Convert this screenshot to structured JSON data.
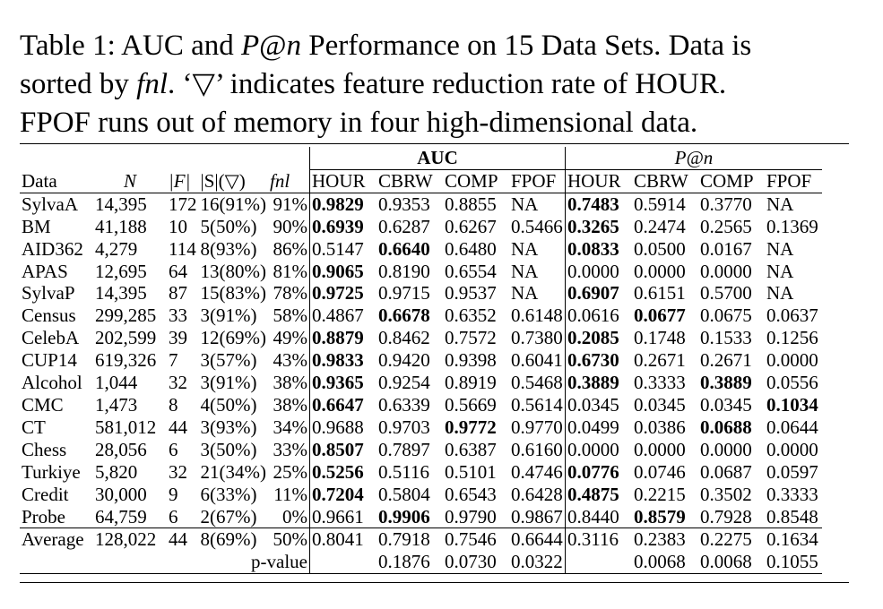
{
  "caption": {
    "line1": "Table 1: AUC and P@n Performance on 15 Data Sets. Data is",
    "line2": "sorted by fnl. ‘▽’ indicates feature reduction rate of HOUR.",
    "line3": "FPOF runs out of memory in four high-dimensional data."
  },
  "groups": {
    "auc": "AUC",
    "pn": "P@n"
  },
  "headers": [
    "Data",
    "N",
    "|F|",
    "|S|(▽)",
    "fnl",
    "HOUR",
    "CBRW",
    "COMP",
    "FPOF",
    "HOUR",
    "CBRW",
    "COMP",
    "FPOF"
  ],
  "rows": [
    {
      "cells": [
        "SylvaA",
        "14,395",
        "172",
        "16(91%)",
        "91%",
        "0.9829",
        "0.9353",
        "0.8855",
        "NA",
        "0.7483",
        "0.5914",
        "0.3770",
        "NA"
      ],
      "bold": [
        5,
        9
      ]
    },
    {
      "cells": [
        "BM",
        "41,188",
        "10",
        "5(50%)",
        "90%",
        "0.6939",
        "0.6287",
        "0.6267",
        "0.5466",
        "0.3265",
        "0.2474",
        "0.2565",
        "0.1369"
      ],
      "bold": [
        5,
        9
      ]
    },
    {
      "cells": [
        "AID362",
        "4,279",
        "114",
        "8(93%)",
        "86%",
        "0.5147",
        "0.6640",
        "0.6480",
        "NA",
        "0.0833",
        "0.0500",
        "0.0167",
        "NA"
      ],
      "bold": [
        6,
        9
      ]
    },
    {
      "cells": [
        "APAS",
        "12,695",
        "64",
        "13(80%)",
        "81%",
        "0.9065",
        "0.8190",
        "0.6554",
        "NA",
        "0.0000",
        "0.0000",
        "0.0000",
        "NA"
      ],
      "bold": [
        5
      ]
    },
    {
      "cells": [
        "SylvaP",
        "14,395",
        "87",
        "15(83%)",
        "78%",
        "0.9725",
        "0.9715",
        "0.9537",
        "NA",
        "0.6907",
        "0.6151",
        "0.5700",
        "NA"
      ],
      "bold": [
        5,
        9
      ]
    },
    {
      "cells": [
        "Census",
        "299,285",
        "33",
        "3(91%)",
        "58%",
        "0.4867",
        "0.6678",
        "0.6352",
        "0.6148",
        "0.0616",
        "0.0677",
        "0.0675",
        "0.0637"
      ],
      "bold": [
        6,
        10
      ]
    },
    {
      "cells": [
        "CelebA",
        "202,599",
        "39",
        "12(69%)",
        "49%",
        "0.8879",
        "0.8462",
        "0.7572",
        "0.7380",
        "0.2085",
        "0.1748",
        "0.1533",
        "0.1256"
      ],
      "bold": [
        5,
        9
      ]
    },
    {
      "cells": [
        "CUP14",
        "619,326",
        "7",
        "3(57%)",
        "43%",
        "0.9833",
        "0.9420",
        "0.9398",
        "0.6041",
        "0.6730",
        "0.2671",
        "0.2671",
        "0.0000"
      ],
      "bold": [
        5,
        9
      ]
    },
    {
      "cells": [
        "Alcohol",
        "1,044",
        "32",
        "3(91%)",
        "38%",
        "0.9365",
        "0.9254",
        "0.8919",
        "0.5468",
        "0.3889",
        "0.3333",
        "0.3889",
        "0.0556"
      ],
      "bold": [
        5,
        9,
        11
      ]
    },
    {
      "cells": [
        "CMC",
        "1,473",
        "8",
        "4(50%)",
        "38%",
        "0.6647",
        "0.6339",
        "0.5669",
        "0.5614",
        "0.0345",
        "0.0345",
        "0.0345",
        "0.1034"
      ],
      "bold": [
        5,
        12
      ]
    },
    {
      "cells": [
        "CT",
        "581,012",
        "44",
        "3(93%)",
        "34%",
        "0.9688",
        "0.9703",
        "0.9772",
        "0.9770",
        "0.0499",
        "0.0386",
        "0.0688",
        "0.0644"
      ],
      "bold": [
        7,
        11
      ]
    },
    {
      "cells": [
        "Chess",
        "28,056",
        "6",
        "3(50%)",
        "33%",
        "0.8507",
        "0.7897",
        "0.6387",
        "0.6160",
        "0.0000",
        "0.0000",
        "0.0000",
        "0.0000"
      ],
      "bold": [
        5
      ]
    },
    {
      "cells": [
        "Turkiye",
        "5,820",
        "32",
        "21(34%)",
        "25%",
        "0.5256",
        "0.5116",
        "0.5101",
        "0.4746",
        "0.0776",
        "0.0746",
        "0.0687",
        "0.0597"
      ],
      "bold": [
        5,
        9
      ]
    },
    {
      "cells": [
        "Credit",
        "30,000",
        "9",
        "6(33%)",
        "11%",
        "0.7204",
        "0.5804",
        "0.6543",
        "0.6428",
        "0.4875",
        "0.2215",
        "0.3502",
        "0.3333"
      ],
      "bold": [
        5,
        9
      ]
    },
    {
      "cells": [
        "Probe",
        "64,759",
        "6",
        "2(67%)",
        "0%",
        "0.9661",
        "0.9906",
        "0.9790",
        "0.9867",
        "0.8440",
        "0.8579",
        "0.7928",
        "0.8548"
      ],
      "bold": [
        6,
        10
      ]
    }
  ],
  "average": [
    "Average",
    "128,022",
    "44",
    "8(69%)",
    "50%",
    "0.8041",
    "0.7918",
    "0.7546",
    "0.6644",
    "0.3116",
    "0.2383",
    "0.2275",
    "0.1634"
  ],
  "pvalue": {
    "label": "p-value",
    "auc": [
      "0.1876",
      "0.0730",
      "0.0322"
    ],
    "pn": [
      "0.0068",
      "0.0068",
      "0.1055"
    ]
  }
}
